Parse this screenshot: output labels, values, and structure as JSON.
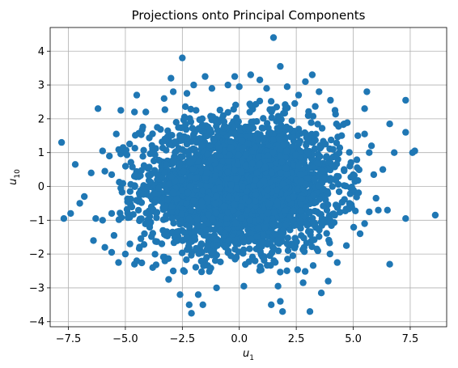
{
  "chart_data": {
    "type": "scatter",
    "title": "Projections onto Principal Components",
    "xlabel": {
      "base": "u",
      "sub": "1"
    },
    "ylabel": {
      "base": "u",
      "sub": "10"
    },
    "xlim": [
      -8.3,
      9.1
    ],
    "ylim": [
      -4.15,
      4.7
    ],
    "xticks": [
      -7.5,
      -5.0,
      -2.5,
      0.0,
      2.5,
      5.0,
      7.5
    ],
    "xtick_labels": [
      "−7.5",
      "−5.0",
      "−2.5",
      "0.0",
      "2.5",
      "5.0",
      "7.5"
    ],
    "yticks": [
      -4,
      -3,
      -2,
      -1,
      0,
      1,
      2,
      3,
      4
    ],
    "ytick_labels": [
      "−4",
      "−3",
      "−2",
      "−1",
      "0",
      "1",
      "2",
      "3",
      "4"
    ],
    "grid": true,
    "marker_color": "#1f77b4",
    "series": [
      {
        "points": [
          [
            1.5,
            4.4
          ],
          [
            -2.5,
            3.8
          ],
          [
            1.8,
            3.55
          ],
          [
            3.2,
            3.3
          ],
          [
            -1.5,
            3.25
          ],
          [
            0.5,
            3.3
          ],
          [
            -0.2,
            3.25
          ],
          [
            -3.0,
            3.2
          ],
          [
            2.9,
            3.1
          ],
          [
            -2.0,
            3.0
          ],
          [
            0.9,
            3.15
          ],
          [
            0.0,
            2.95
          ],
          [
            -6.2,
            2.3
          ],
          [
            5.6,
            2.8
          ],
          [
            7.3,
            2.55
          ],
          [
            5.5,
            2.3
          ],
          [
            -4.5,
            2.7
          ],
          [
            -3.3,
            2.6
          ],
          [
            4.0,
            2.55
          ],
          [
            -5.2,
            2.25
          ],
          [
            -4.6,
            2.2
          ],
          [
            -2.9,
            2.8
          ],
          [
            2.6,
            2.7
          ],
          [
            -7.8,
            1.3
          ],
          [
            -7.2,
            0.65
          ],
          [
            -6.0,
            1.05
          ],
          [
            -6.5,
            0.4
          ],
          [
            -6.8,
            -0.3
          ],
          [
            -7.0,
            -0.5
          ],
          [
            -7.4,
            -0.8
          ],
          [
            -7.7,
            -0.95
          ],
          [
            -6.3,
            -0.95
          ],
          [
            -6.0,
            -1.0
          ],
          [
            -6.4,
            -1.6
          ],
          [
            -5.9,
            -1.8
          ],
          [
            -5.5,
            -1.45
          ],
          [
            -5.3,
            -2.25
          ],
          [
            -5.6,
            -1.95
          ],
          [
            -4.5,
            -2.2
          ],
          [
            -4.6,
            -2.3
          ],
          [
            -3.1,
            -2.75
          ],
          [
            -2.9,
            -2.5
          ],
          [
            -2.6,
            -3.2
          ],
          [
            -2.1,
            -3.75
          ],
          [
            -1.8,
            -3.2
          ],
          [
            -1.6,
            -3.5
          ],
          [
            -2.2,
            -3.5
          ],
          [
            -1.0,
            -3.0
          ],
          [
            0.2,
            -2.95
          ],
          [
            1.4,
            -3.5
          ],
          [
            1.8,
            -3.4
          ],
          [
            1.9,
            -3.7
          ],
          [
            1.7,
            -2.95
          ],
          [
            3.1,
            -3.7
          ],
          [
            3.6,
            -3.15
          ],
          [
            2.8,
            -2.85
          ],
          [
            3.9,
            -2.8
          ],
          [
            4.3,
            -2.25
          ],
          [
            4.7,
            -1.75
          ],
          [
            5.3,
            -1.4
          ],
          [
            5.5,
            -1.1
          ],
          [
            6.6,
            -2.3
          ],
          [
            7.3,
            -0.95
          ],
          [
            8.6,
            -0.85
          ],
          [
            6.5,
            -0.7
          ],
          [
            6.1,
            -0.7
          ],
          [
            5.7,
            -0.75
          ],
          [
            6.0,
            -0.35
          ],
          [
            5.9,
            0.35
          ],
          [
            6.3,
            0.5
          ],
          [
            6.8,
            1.0
          ],
          [
            7.3,
            1.6
          ],
          [
            7.6,
            1.0
          ],
          [
            7.7,
            1.05
          ],
          [
            6.6,
            1.85
          ],
          [
            5.8,
            1.2
          ],
          [
            5.7,
            1.0
          ],
          [
            5.2,
            1.5
          ],
          [
            5.5,
            1.55
          ],
          [
            4.6,
            1.85
          ],
          [
            4.2,
            2.25
          ],
          [
            -5.4,
            1.55
          ],
          [
            -5.1,
            1.15
          ],
          [
            -5.7,
            0.9
          ],
          [
            -5.6,
            0.35
          ],
          [
            -5.9,
            0.45
          ],
          [
            -5.2,
            -0.05
          ],
          [
            -5.6,
            -0.8
          ],
          [
            -4.8,
            -1.7
          ],
          [
            -5.0,
            -2.0
          ],
          [
            -3.8,
            -2.4
          ],
          [
            -0.5,
            3.0
          ],
          [
            1.2,
            2.9
          ],
          [
            2.1,
            2.95
          ],
          [
            -1.2,
            2.9
          ],
          [
            -2.3,
            2.75
          ],
          [
            3.5,
            2.8
          ]
        ]
      }
    ],
    "dense_core": {
      "center": [
        0.1,
        0.0
      ],
      "std": [
        2.15,
        0.95
      ],
      "count": 3200
    }
  }
}
